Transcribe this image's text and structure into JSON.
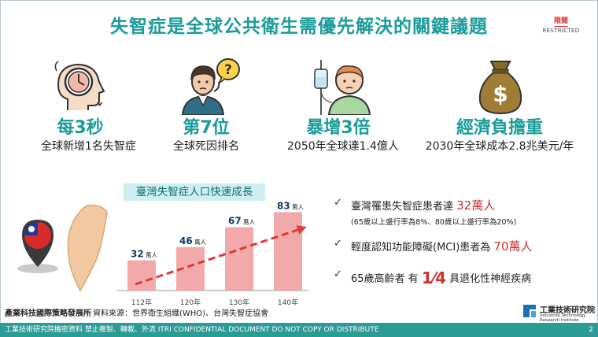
{
  "title": "失智症是全球公共衛生需優先解決的關鍵議題",
  "classification": {
    "zh": "限閱",
    "en": "RESTRICTED"
  },
  "stats": [
    {
      "big": "每3秒",
      "small": "全球新增1名失智症",
      "icon": "brain-clock-icon"
    },
    {
      "big": "第7位",
      "small": "全球死因排名",
      "icon": "confused-person-icon"
    },
    {
      "big": "暴增3倍",
      "small": "2050年全球達1.4億人",
      "icon": "patient-iv-icon"
    },
    {
      "big": "經濟負擔重",
      "small": "2030年全球成本2.8兆美元/年",
      "icon": "money-bag-icon"
    }
  ],
  "chart_title": "臺灣失智症人口快速成長",
  "chart_data": {
    "type": "bar",
    "categories": [
      "112年",
      "120年",
      "130年",
      "140年"
    ],
    "values": [
      32,
      46,
      67,
      83
    ],
    "value_unit": "萬人",
    "color": "#f2a9a9",
    "trend_arrow_color": "#e03a3a"
  },
  "bullets": [
    {
      "pre": "臺灣罹患失智症患者達 ",
      "hl": "32萬人",
      "post": "",
      "note": "(65歲以上盛行率為8%、80歲以上盛行率為20%)"
    },
    {
      "pre": "輕度認知功能障礙(MCI)患者為 ",
      "hl": "70萬人",
      "post": "",
      "note": ""
    },
    {
      "pre": "65歲高齡者 有 ",
      "frac": "1⁄4",
      "post": " 具退化性神經疾病",
      "note": ""
    }
  ],
  "org_left": "產業科技國際策略發展所",
  "source": "資料來源：世界衛生組織(WHO)、台灣失智症協會",
  "logo": {
    "zh": "工業技術研究院",
    "en1": "Industrial Technology",
    "en2": "Research Institute"
  },
  "footer": "工業技術研究院機密資料 禁止複製、轉載、外流 ITRI CONFIDENTIAL DOCUMENT DO NOT COPY OR DISTRIBUTE",
  "page": "2",
  "colors": {
    "accent": "#1a9c9b",
    "highlight": "#d0312d",
    "footer_bg": "#2a9b95"
  }
}
